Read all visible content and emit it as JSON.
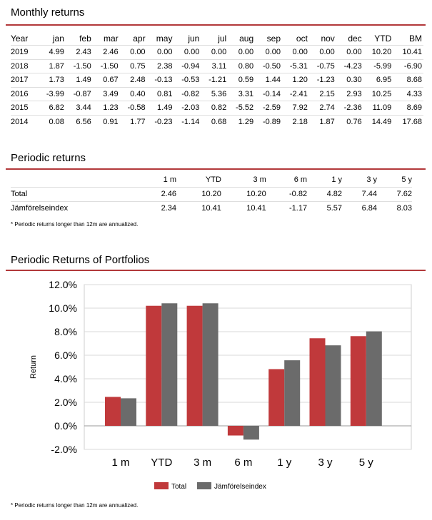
{
  "monthly": {
    "title": "Monthly returns",
    "columns": [
      "Year",
      "jan",
      "feb",
      "mar",
      "apr",
      "may",
      "jun",
      "jul",
      "aug",
      "sep",
      "oct",
      "nov",
      "dec",
      "YTD",
      "BM"
    ],
    "rows": [
      [
        "2019",
        "4.99",
        "2.43",
        "2.46",
        "0.00",
        "0.00",
        "0.00",
        "0.00",
        "0.00",
        "0.00",
        "0.00",
        "0.00",
        "0.00",
        "10.20",
        "10.41"
      ],
      [
        "2018",
        "1.87",
        "-1.50",
        "-1.50",
        "0.75",
        "2.38",
        "-0.94",
        "3.11",
        "0.80",
        "-0.50",
        "-5.31",
        "-0.75",
        "-4.23",
        "-5.99",
        "-6.90"
      ],
      [
        "2017",
        "1.73",
        "1.49",
        "0.67",
        "2.48",
        "-0.13",
        "-0.53",
        "-1.21",
        "0.59",
        "1.44",
        "1.20",
        "-1.23",
        "0.30",
        "6.95",
        "8.68"
      ],
      [
        "2016",
        "-3.99",
        "-0.87",
        "3.49",
        "0.40",
        "0.81",
        "-0.82",
        "5.36",
        "3.31",
        "-0.14",
        "-2.41",
        "2.15",
        "2.93",
        "10.25",
        "4.33"
      ],
      [
        "2015",
        "6.82",
        "3.44",
        "1.23",
        "-0.58",
        "1.49",
        "-2.03",
        "0.82",
        "-5.52",
        "-2.59",
        "7.92",
        "2.74",
        "-2.36",
        "11.09",
        "8.69"
      ],
      [
        "2014",
        "0.08",
        "6.56",
        "0.91",
        "1.77",
        "-0.23",
        "-1.14",
        "0.68",
        "1.29",
        "-0.89",
        "2.18",
        "1.87",
        "0.76",
        "14.49",
        "17.68"
      ]
    ]
  },
  "periodic": {
    "title": "Periodic returns",
    "columns": [
      "",
      "1 m",
      "YTD",
      "3 m",
      "6 m",
      "1 y",
      "3 y",
      "5 y"
    ],
    "rows": [
      [
        "Total",
        "2.46",
        "10.20",
        "10.20",
        "-0.82",
        "4.82",
        "7.44",
        "7.62"
      ],
      [
        "Jämförelseindex",
        "2.34",
        "10.41",
        "10.41",
        "-1.17",
        "5.57",
        "6.84",
        "8.03"
      ]
    ],
    "note": "* Periodic returns longer than 12m are annualized."
  },
  "chart_section": {
    "title": "Periodic Returns of Portfolios",
    "note": "* Periodic returns longer than 12m are annualized."
  },
  "chart_data": {
    "type": "bar",
    "categories": [
      "1 m",
      "YTD",
      "3 m",
      "6 m",
      "1 y",
      "3 y",
      "5 y"
    ],
    "series": [
      {
        "name": "Total",
        "values": [
          2.46,
          10.2,
          10.2,
          -0.82,
          4.82,
          7.44,
          7.62
        ],
        "color": "#c0393b"
      },
      {
        "name": "Jämförelseindex",
        "values": [
          2.34,
          10.41,
          10.41,
          -1.17,
          5.57,
          6.84,
          8.03
        ],
        "color": "#6b6b6b"
      }
    ],
    "ylabel": "Return",
    "ylim": [
      -2,
      12
    ],
    "yticks": [
      -2,
      0,
      2,
      4,
      6,
      8,
      10,
      12
    ],
    "ytick_labels": [
      "-2.0%",
      "0.0%",
      "2.0%",
      "4.0%",
      "6.0%",
      "8.0%",
      "10.0%",
      "12.0%"
    ],
    "grid": true,
    "legend": "bottom"
  },
  "colors": {
    "accent": "#b2383a"
  }
}
